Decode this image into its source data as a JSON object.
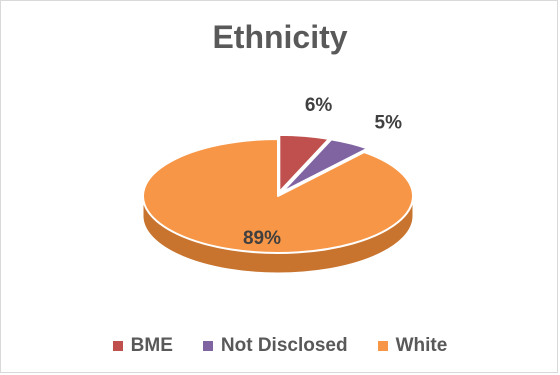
{
  "chart_data": {
    "type": "pie",
    "title": "Ethnicity",
    "categories": [
      "BME",
      "Not Disclosed",
      "White"
    ],
    "values": [
      6,
      5,
      89
    ],
    "labels": [
      "6%",
      "5%",
      "89%"
    ],
    "colors": [
      "#c0504d",
      "#8064a2",
      "#f79646"
    ],
    "side_colors": [
      "#8f3735",
      "#5f4a7a",
      "#c8742f"
    ],
    "legend_position": "bottom",
    "exploded": true,
    "style": "3d"
  }
}
